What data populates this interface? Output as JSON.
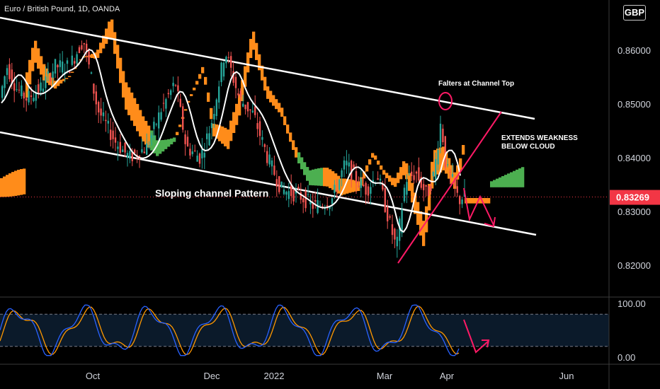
{
  "header": {
    "symbol_title": "Euro / British Pound, 1D, OANDA",
    "currency": "GBP"
  },
  "annotations": {
    "channel_pattern": "Sloping channel Pattern",
    "falters": "Falters at Channel Top",
    "extends": [
      "EXTENDS WEAKNESS",
      "BELOW CLOUD"
    ]
  },
  "chart_data": {
    "type": "candlestick",
    "price_axis": {
      "range": [
        0.8155,
        0.8655
      ],
      "ticks": [
        0.82,
        0.83,
        0.84,
        0.85,
        0.86
      ],
      "tick_labels": [
        "0.82000",
        "0.83000",
        "0.84000",
        "0.85000",
        "0.86000"
      ],
      "current_price": 0.83269,
      "current_price_label": "0.83269"
    },
    "time_axis": {
      "labels": [
        "Oct",
        "Dec",
        "2022",
        "Mar",
        "Apr",
        "Jun"
      ]
    },
    "oscillator": {
      "range": [
        0,
        100
      ],
      "ticks": [
        0,
        100
      ],
      "tick_labels": [
        "0.00",
        "100.00"
      ],
      "bands": [
        20,
        80
      ]
    },
    "colors": {
      "up": "#26a69a",
      "down": "#ef5350",
      "cloud_bear": "#ff8c1a",
      "cloud_bull": "#4caf50",
      "ma": "#ffffff",
      "price_line": "#f23645",
      "stoch_k": "#2962ff",
      "stoch_d": "#ff9800",
      "arrow": "#ff1a66"
    }
  }
}
